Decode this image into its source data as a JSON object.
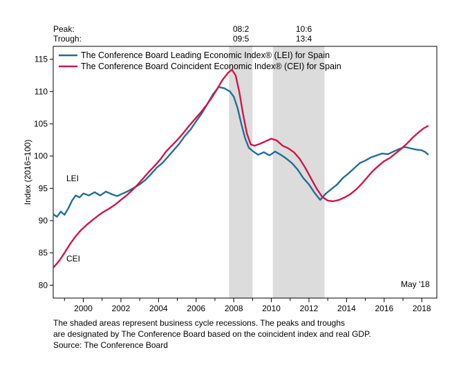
{
  "header": {
    "peak_label": "Peak:",
    "trough_label": "Trough:",
    "peaks": [
      "08:2",
      "10:6"
    ],
    "troughs": [
      "09:5",
      "13:4"
    ]
  },
  "chart_data": {
    "type": "line",
    "ylabel": "Index (2016=100)",
    "xlabel": "",
    "ylim": [
      78,
      117
    ],
    "xlim": [
      1998.4,
      2018.8
    ],
    "xticks": [
      2000,
      2002,
      2004,
      2006,
      2008,
      2010,
      2012,
      2014,
      2016,
      2018
    ],
    "yticks": [
      80,
      85,
      90,
      95,
      100,
      105,
      110,
      115
    ],
    "grid": false,
    "legend": "top-left",
    "date_note": "May '18",
    "recessions": [
      {
        "start": 2007.75,
        "end": 2009.0,
        "peak": "08:2",
        "trough": "09:5"
      },
      {
        "start": 2010.08,
        "end": 2012.83,
        "peak": "10:6",
        "trough": "13:4"
      }
    ],
    "series": [
      {
        "name": "The Conference Board Leading Economic Index® (LEI) for Spain",
        "short_label": "LEI",
        "color": "#1f6f96",
        "points": [
          [
            1998.4,
            91.0
          ],
          [
            1998.6,
            90.6
          ],
          [
            1998.8,
            91.4
          ],
          [
            1999.0,
            90.9
          ],
          [
            1999.2,
            91.9
          ],
          [
            1999.4,
            93.1
          ],
          [
            1999.6,
            93.9
          ],
          [
            1999.8,
            93.6
          ],
          [
            2000.0,
            94.2
          ],
          [
            2000.3,
            93.9
          ],
          [
            2000.6,
            94.4
          ],
          [
            2000.9,
            93.9
          ],
          [
            2001.2,
            94.5
          ],
          [
            2001.5,
            94.1
          ],
          [
            2001.8,
            93.8
          ],
          [
            2002.1,
            94.2
          ],
          [
            2002.4,
            94.6
          ],
          [
            2002.7,
            95.1
          ],
          [
            2003.0,
            95.6
          ],
          [
            2003.3,
            96.3
          ],
          [
            2003.6,
            97.2
          ],
          [
            2003.9,
            98.2
          ],
          [
            2004.2,
            98.9
          ],
          [
            2004.5,
            99.9
          ],
          [
            2004.8,
            100.9
          ],
          [
            2005.1,
            101.9
          ],
          [
            2005.4,
            103.1
          ],
          [
            2005.7,
            104.1
          ],
          [
            2006.0,
            105.4
          ],
          [
            2006.3,
            106.6
          ],
          [
            2006.6,
            108.1
          ],
          [
            2006.9,
            109.6
          ],
          [
            2007.2,
            110.7
          ],
          [
            2007.5,
            110.5
          ],
          [
            2007.8,
            110.0
          ],
          [
            2008.0,
            109.2
          ],
          [
            2008.2,
            107.5
          ],
          [
            2008.4,
            105.0
          ],
          [
            2008.6,
            102.8
          ],
          [
            2008.8,
            101.3
          ],
          [
            2009.0,
            100.8
          ],
          [
            2009.3,
            100.2
          ],
          [
            2009.6,
            100.6
          ],
          [
            2009.9,
            100.1
          ],
          [
            2010.2,
            100.7
          ],
          [
            2010.5,
            100.2
          ],
          [
            2010.8,
            99.6
          ],
          [
            2011.1,
            98.9
          ],
          [
            2011.4,
            97.9
          ],
          [
            2011.7,
            96.6
          ],
          [
            2012.0,
            95.6
          ],
          [
            2012.3,
            94.3
          ],
          [
            2012.6,
            93.2
          ],
          [
            2012.9,
            94.2
          ],
          [
            2013.2,
            94.9
          ],
          [
            2013.5,
            95.6
          ],
          [
            2013.8,
            96.6
          ],
          [
            2014.1,
            97.3
          ],
          [
            2014.4,
            98.1
          ],
          [
            2014.7,
            98.9
          ],
          [
            2015.0,
            99.3
          ],
          [
            2015.3,
            99.8
          ],
          [
            2015.6,
            100.1
          ],
          [
            2015.9,
            100.4
          ],
          [
            2016.2,
            100.3
          ],
          [
            2016.5,
            100.7
          ],
          [
            2016.8,
            101.1
          ],
          [
            2017.1,
            101.4
          ],
          [
            2017.4,
            101.2
          ],
          [
            2017.7,
            101.0
          ],
          [
            2018.0,
            100.9
          ],
          [
            2018.2,
            100.6
          ],
          [
            2018.35,
            100.2
          ]
        ]
      },
      {
        "name": "The Conference Board Coincident Economic Index® (CEI) for Spain",
        "short_label": "CEI",
        "color": "#d0154a",
        "points": [
          [
            1998.4,
            82.7
          ],
          [
            1998.7,
            83.7
          ],
          [
            1999.0,
            85.0
          ],
          [
            1999.3,
            86.4
          ],
          [
            1999.6,
            87.6
          ],
          [
            1999.9,
            88.6
          ],
          [
            2000.2,
            89.4
          ],
          [
            2000.5,
            90.1
          ],
          [
            2000.8,
            90.8
          ],
          [
            2001.1,
            91.4
          ],
          [
            2001.4,
            91.9
          ],
          [
            2001.7,
            92.5
          ],
          [
            2002.0,
            93.2
          ],
          [
            2002.3,
            93.9
          ],
          [
            2002.6,
            94.7
          ],
          [
            2002.9,
            95.6
          ],
          [
            2003.2,
            96.6
          ],
          [
            2003.5,
            97.6
          ],
          [
            2003.8,
            98.5
          ],
          [
            2004.1,
            99.5
          ],
          [
            2004.4,
            100.7
          ],
          [
            2004.7,
            101.6
          ],
          [
            2005.0,
            102.5
          ],
          [
            2005.3,
            103.5
          ],
          [
            2005.6,
            104.6
          ],
          [
            2005.9,
            105.6
          ],
          [
            2006.2,
            106.6
          ],
          [
            2006.5,
            107.7
          ],
          [
            2006.8,
            108.9
          ],
          [
            2007.1,
            110.3
          ],
          [
            2007.4,
            111.8
          ],
          [
            2007.7,
            112.9
          ],
          [
            2007.9,
            113.4
          ],
          [
            2008.1,
            112.5
          ],
          [
            2008.3,
            109.9
          ],
          [
            2008.5,
            106.4
          ],
          [
            2008.7,
            103.5
          ],
          [
            2008.9,
            101.8
          ],
          [
            2009.1,
            101.6
          ],
          [
            2009.4,
            101.9
          ],
          [
            2009.7,
            102.3
          ],
          [
            2010.0,
            102.7
          ],
          [
            2010.3,
            102.4
          ],
          [
            2010.6,
            101.6
          ],
          [
            2010.9,
            101.2
          ],
          [
            2011.2,
            100.6
          ],
          [
            2011.5,
            99.6
          ],
          [
            2011.8,
            98.2
          ],
          [
            2012.1,
            96.6
          ],
          [
            2012.4,
            95.0
          ],
          [
            2012.7,
            93.7
          ],
          [
            2013.0,
            93.1
          ],
          [
            2013.3,
            93.0
          ],
          [
            2013.6,
            93.2
          ],
          [
            2013.9,
            93.6
          ],
          [
            2014.2,
            94.1
          ],
          [
            2014.5,
            94.8
          ],
          [
            2014.8,
            95.7
          ],
          [
            2015.1,
            96.7
          ],
          [
            2015.4,
            97.7
          ],
          [
            2015.7,
            98.5
          ],
          [
            2016.0,
            99.2
          ],
          [
            2016.3,
            99.7
          ],
          [
            2016.6,
            100.4
          ],
          [
            2016.9,
            101.1
          ],
          [
            2017.2,
            101.9
          ],
          [
            2017.5,
            102.8
          ],
          [
            2017.8,
            103.6
          ],
          [
            2018.1,
            104.3
          ],
          [
            2018.35,
            104.7
          ]
        ]
      }
    ]
  },
  "footer": {
    "line1": "The shaded areas represent business cycle recessions. The peaks and troughs",
    "line2": "are designated by The Conference Board based on the coincident index and real GDP.",
    "line3": "Source: The Conference Board"
  }
}
